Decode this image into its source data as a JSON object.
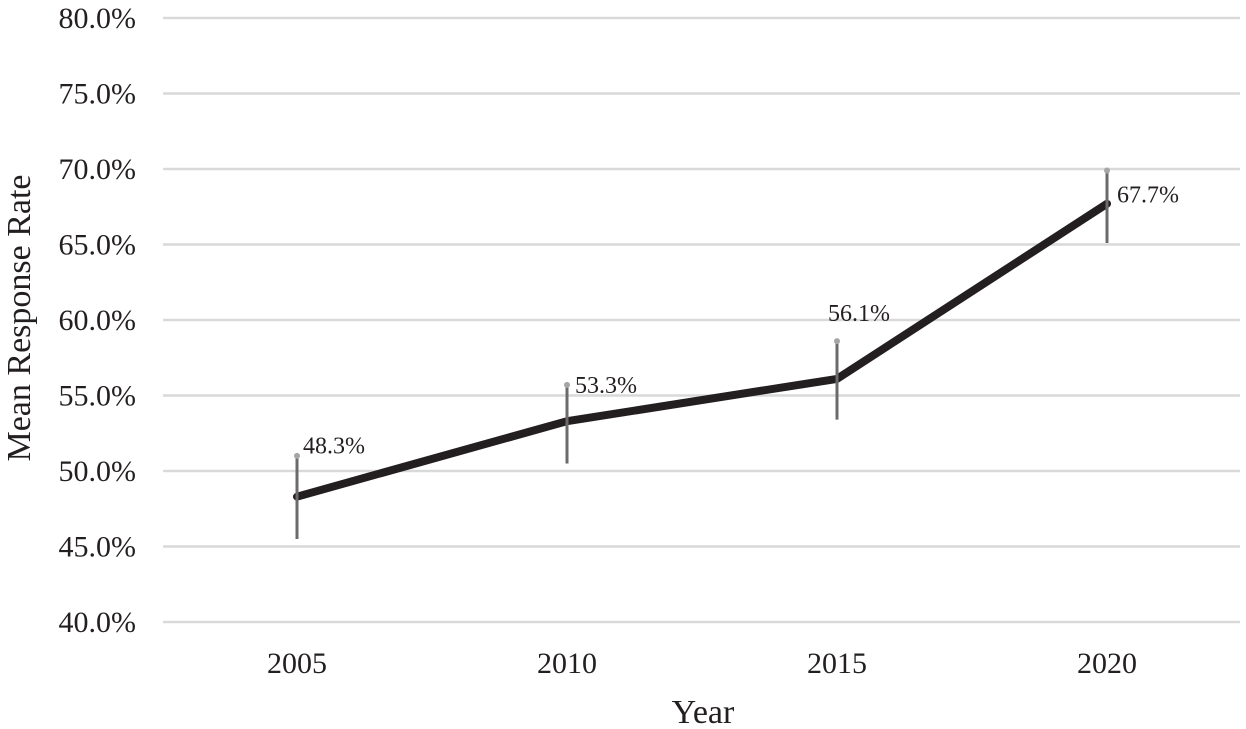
{
  "chart_data": {
    "type": "line",
    "title": "",
    "xlabel": "Year",
    "ylabel": "Mean Response Rate",
    "categories": [
      "2005",
      "2010",
      "2015",
      "2020"
    ],
    "series": [
      {
        "values": [
          48.3,
          53.3,
          56.1,
          67.7
        ],
        "labels": [
          "48.3%",
          "53.3%",
          "56.1%",
          "67.7%"
        ],
        "error_upper": [
          51.0,
          55.7,
          58.6,
          69.9
        ],
        "error_lower": [
          45.5,
          50.5,
          53.4,
          65.1
        ],
        "color": "#231f20"
      }
    ],
    "ylim": [
      40,
      80
    ],
    "yticks": [
      40,
      45,
      50,
      55,
      60,
      65,
      70,
      75,
      80
    ],
    "ytick_labels": [
      "40.0%",
      "45.0%",
      "50.0%",
      "55.0%",
      "60.0%",
      "65.0%",
      "70.0%",
      "75.0%",
      "80.0%"
    ],
    "grid": true,
    "legend": "none",
    "colors": {
      "line": "#231f20",
      "error_bar": "#6b6b6b",
      "error_cap": "#a6a6a6",
      "grid": "#d9d9d9"
    }
  }
}
